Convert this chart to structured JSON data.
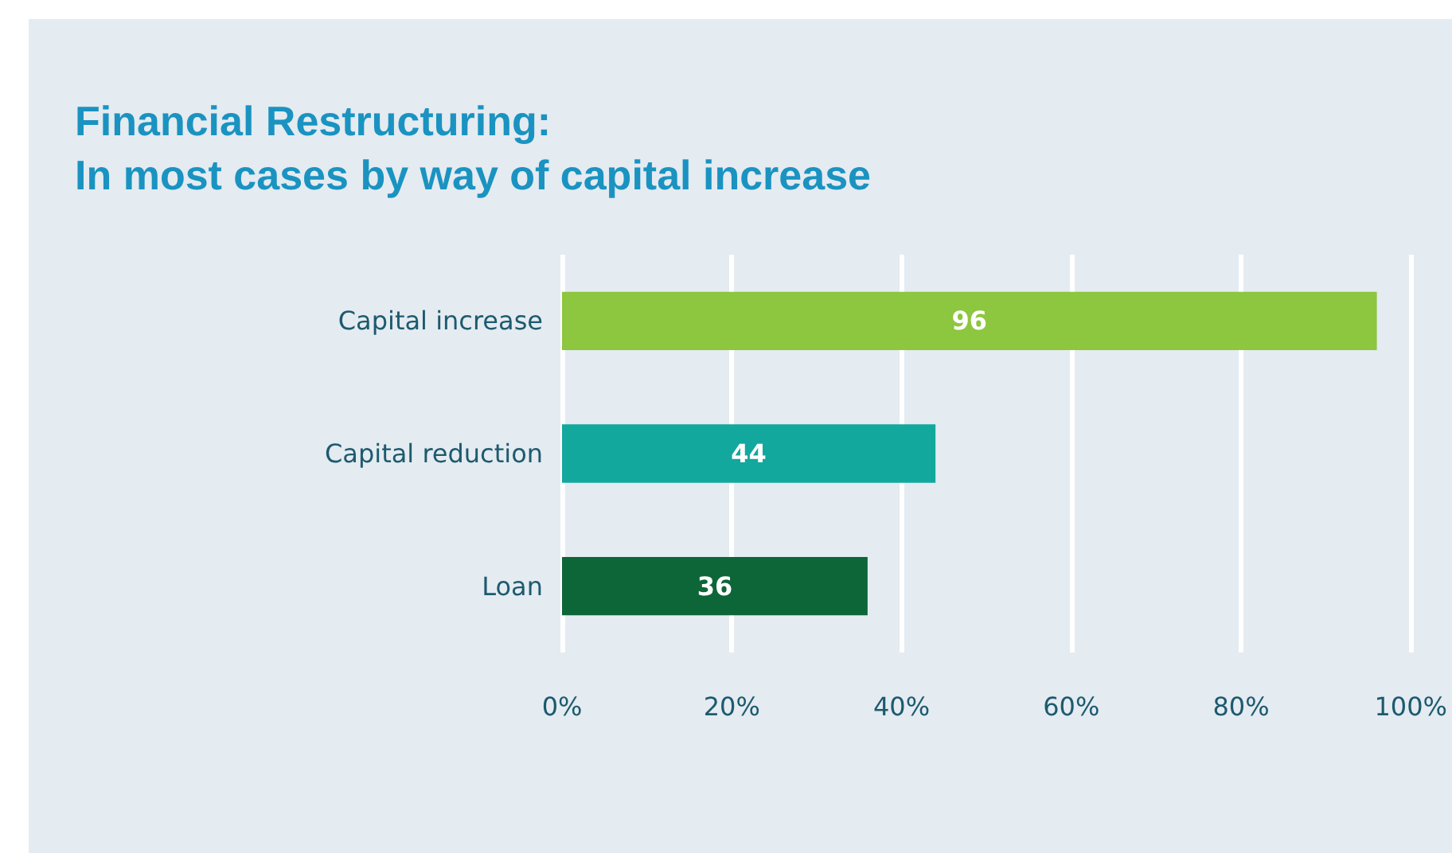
{
  "chart_data": {
    "type": "bar",
    "orientation": "horizontal",
    "title": "Financial Restructuring:\nIn most cases by way of capital increase",
    "categories": [
      "Capital increase",
      "Capital reduction",
      "Loan"
    ],
    "values": [
      96,
      44,
      36
    ],
    "colors": [
      "#8dc63f",
      "#12a89d",
      "#0d6638"
    ],
    "xlim": [
      0,
      100
    ],
    "xticks": [
      {
        "value": 0,
        "label": "0%"
      },
      {
        "value": 20,
        "label": "20%"
      },
      {
        "value": 40,
        "label": "40%"
      },
      {
        "value": 60,
        "label": "60%"
      },
      {
        "value": 80,
        "label": "80%"
      },
      {
        "value": 100,
        "label": "100%"
      }
    ],
    "grid": "x",
    "data_labels": true
  }
}
